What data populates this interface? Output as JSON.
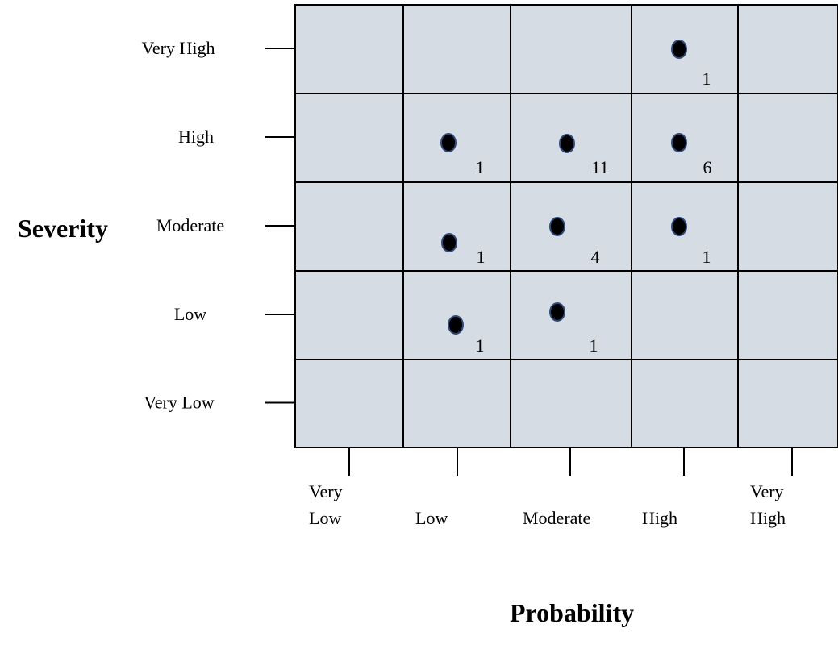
{
  "chart_data": {
    "type": "scatter",
    "title": "",
    "ylabel": "Severity",
    "xlabel": "Probability",
    "y_categories": [
      "Very Low",
      "Low",
      "Moderate",
      "High",
      "Very High"
    ],
    "x_categories": [
      [
        "Very",
        "Low"
      ],
      [
        "Low"
      ],
      [
        "Moderate"
      ],
      [
        "High"
      ],
      [
        "Very",
        "High"
      ]
    ],
    "grid": true,
    "colors": {
      "cell": "#d6dce4",
      "grid": "#000000",
      "point": "#000000",
      "point_stroke": "#2f4a7a"
    },
    "points": [
      {
        "probability": "High",
        "severity": "Very High",
        "count": "1"
      },
      {
        "probability": "Low",
        "severity": "High",
        "count": "1"
      },
      {
        "probability": "Moderate",
        "severity": "High",
        "count": "11"
      },
      {
        "probability": "High",
        "severity": "High",
        "count": "6"
      },
      {
        "probability": "Low",
        "severity": "Moderate",
        "count": "1"
      },
      {
        "probability": "Moderate",
        "severity": "Moderate",
        "count": "4"
      },
      {
        "probability": "High",
        "severity": "Moderate",
        "count": "1"
      },
      {
        "probability": "Low",
        "severity": "Low",
        "count": "1"
      },
      {
        "probability": "Moderate",
        "severity": "Low",
        "count": "1"
      }
    ]
  }
}
